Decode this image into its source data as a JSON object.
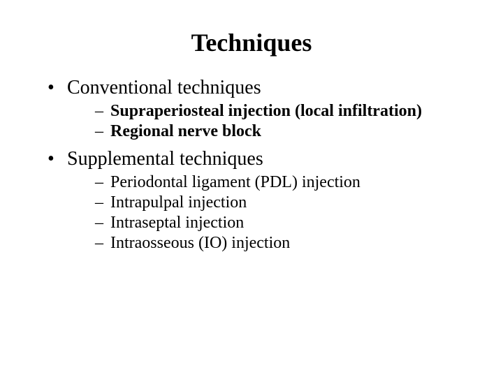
{
  "title": "Techniques",
  "title_fontsize": 36,
  "body_level1_fontsize": 28,
  "body_level2_fontsize": 24,
  "text_color": "#000000",
  "background_color": "#ffffff",
  "font_family": "Times New Roman",
  "bullets": [
    {
      "text": "Conventional techniques",
      "bold": false,
      "sub": [
        {
          "text": "Supraperiosteal injection (local infiltration)",
          "bold": true
        },
        {
          "text": "Regional nerve block",
          "bold": true
        }
      ]
    },
    {
      "text": "Supplemental techniques",
      "bold": false,
      "sub": [
        {
          "text": "Periodontal ligament (PDL) injection",
          "bold": false
        },
        {
          "text": "Intrapulpal injection",
          "bold": false
        },
        {
          "text": "Intraseptal injection",
          "bold": false
        },
        {
          "text": "Intraosseous (IO) injection",
          "bold": false
        }
      ]
    }
  ]
}
